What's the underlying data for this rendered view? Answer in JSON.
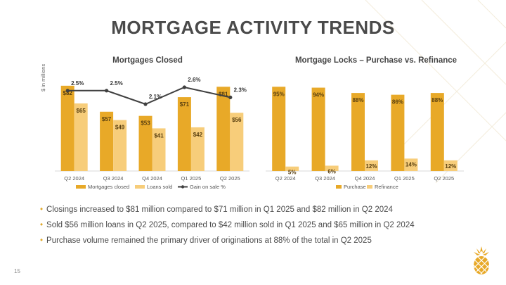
{
  "title": "MORTGAGE ACTIVITY TRENDS",
  "page_number": "15",
  "colors": {
    "dark_gold": "#e8a928",
    "light_gold": "#f7cd7a",
    "line": "#404040",
    "bullet": "#e0a92b"
  },
  "bullets": [
    "Closings increased to $81 million compared to $71 million in Q1 2025 and $82 million in Q2 2024",
    "Sold $56 million loans in Q2 2025, compared to $42 million sold in Q1 2025 and $65 million in Q2 2024",
    "Purchase volume remained the primary driver of originations at 88% of the total in Q2 2025"
  ],
  "chart_data": [
    {
      "type": "bar",
      "title": "Mortgages Closed",
      "ylabel": "$ in millions",
      "categories": [
        "Q2 2024",
        "Q3 2024",
        "Q4 2024",
        "Q1 2025",
        "Q2 2025"
      ],
      "ylim": [
        0,
        90
      ],
      "series": [
        {
          "name": "Mortgages closed",
          "values": [
            82,
            57,
            53,
            71,
            81
          ],
          "labels": [
            "$82",
            "$57",
            "$53",
            "$71",
            "$81"
          ]
        },
        {
          "name": "Loans sold",
          "values": [
            65,
            49,
            41,
            42,
            56
          ],
          "labels": [
            "$65",
            "$49",
            "$41",
            "$42",
            "$56"
          ]
        }
      ],
      "line_series": {
        "name": "Gain on sale %",
        "values": [
          2.5,
          2.5,
          2.1,
          2.6,
          2.3
        ],
        "labels": [
          "2.5%",
          "2.5%",
          "2.1%",
          "2.6%",
          "2.3%"
        ]
      },
      "legend": [
        "Mortgages closed",
        "Loans sold",
        "Gain on sale %"
      ],
      "legend_position": "bottom"
    },
    {
      "type": "bar",
      "title": "Mortgage Locks – Purchase vs. Refinance",
      "categories": [
        "Q2 2024",
        "Q3 2024",
        "Q4 2024",
        "Q1 2025",
        "Q2 2025"
      ],
      "ylim": [
        0,
        100
      ],
      "series": [
        {
          "name": "Purchase",
          "values": [
            95,
            94,
            88,
            86,
            88
          ],
          "labels": [
            "95%",
            "94%",
            "88%",
            "86%",
            "88%"
          ]
        },
        {
          "name": "Refinance",
          "values": [
            5,
            6,
            12,
            14,
            12
          ],
          "labels": [
            "5%",
            "6%",
            "12%",
            "14%",
            "12%"
          ]
        }
      ],
      "legend": [
        "Purchase",
        "Refinance"
      ],
      "legend_position": "bottom"
    }
  ]
}
